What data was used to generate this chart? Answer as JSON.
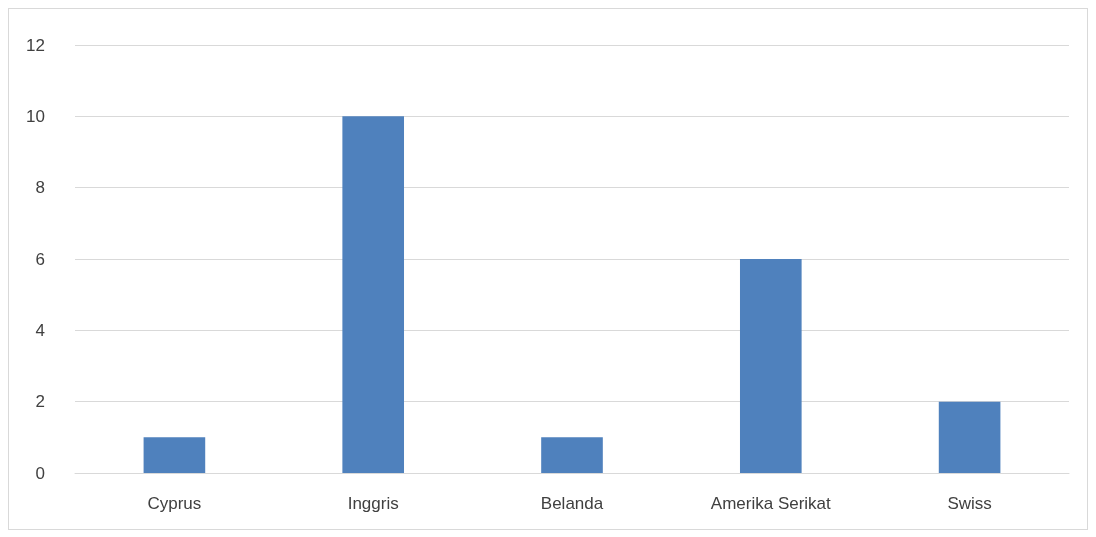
{
  "chart_data": {
    "type": "bar",
    "categories": [
      "Cyprus",
      "Inggris",
      "Belanda",
      "Amerika Serikat",
      "Swiss"
    ],
    "values": [
      1,
      10,
      1,
      6,
      2
    ],
    "color": "#4f81bd",
    "ylim": [
      0,
      12
    ],
    "yticks": [
      0,
      2,
      4,
      6,
      8,
      10,
      12
    ],
    "grid": "y"
  }
}
